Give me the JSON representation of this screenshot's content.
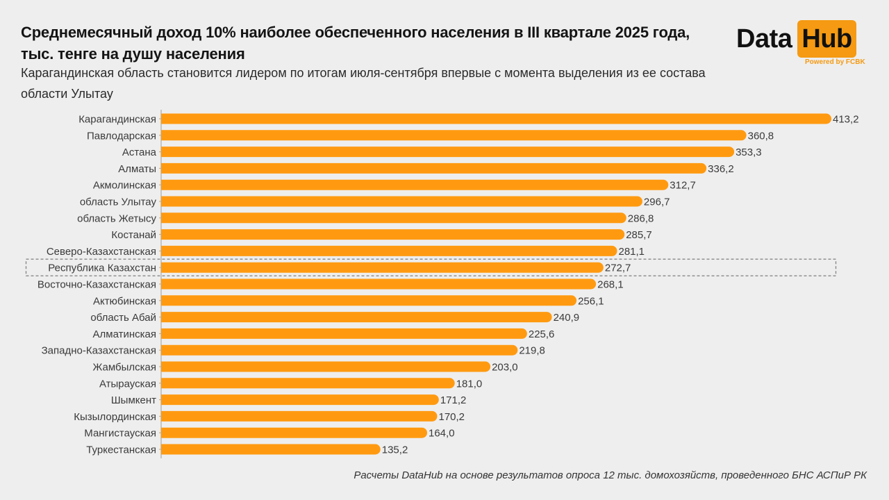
{
  "header": {
    "title": "Среднемесячный доход 10% наиболее обеспеченного населения в III квартале 2025 года, тыс. тенге на душу населения",
    "subtitle": "Карагандинская область становится лидером по итогам июля-сентября впервые с момента выделения из ее состава области Улытау"
  },
  "logo": {
    "word1": "Data",
    "word2": "Hub",
    "tagline": "Powered by FCBK",
    "accent_color": "#f59a12"
  },
  "footer": {
    "source": "Расчеты DataHub на основе результатов опроса 12 тыс. домохозяйств, проведенного БНС АСПиР РК"
  },
  "chart_data": {
    "type": "bar",
    "orientation": "horizontal",
    "title": "Среднемесячный доход 10% наиболее обеспеченного населения в III квартале 2025 года, тыс. тенге на душу населения",
    "xlabel": "",
    "ylabel": "",
    "xlim": [
      0,
      413.2
    ],
    "grid": false,
    "bar_color": "#ff9a10",
    "highlight_category": "Республика Казахстан",
    "categories": [
      "Карагандинская",
      "Павлодарская",
      "Астана",
      "Алматы",
      "Акмолинская",
      "область Улытау",
      "область Жетысу",
      "Костанай",
      "Северо-Казахстанская",
      "Республика Казахстан",
      "Восточно-Казахстанская",
      "Актюбинская",
      "область Абай",
      "Алматинская",
      "Западно-Казахстанская",
      "Жамбылская",
      "Атырауская",
      "Шымкент",
      "Кызылординская",
      "Мангистауская",
      "Туркестанская"
    ],
    "values": [
      413.2,
      360.8,
      353.3,
      336.2,
      312.7,
      296.7,
      286.8,
      285.7,
      281.1,
      272.7,
      268.1,
      256.1,
      240.9,
      225.6,
      219.8,
      203.0,
      181.0,
      171.2,
      170.2,
      164.0,
      135.2
    ],
    "value_labels": [
      "413,2",
      "360,8",
      "353,3",
      "336,2",
      "312,7",
      "296,7",
      "286,8",
      "285,7",
      "281,1",
      "272,7",
      "268,1",
      "256,1",
      "240,9",
      "225,6",
      "219,8",
      "203,0",
      "181,0",
      "171,2",
      "170,2",
      "164,0",
      "135,2"
    ]
  }
}
